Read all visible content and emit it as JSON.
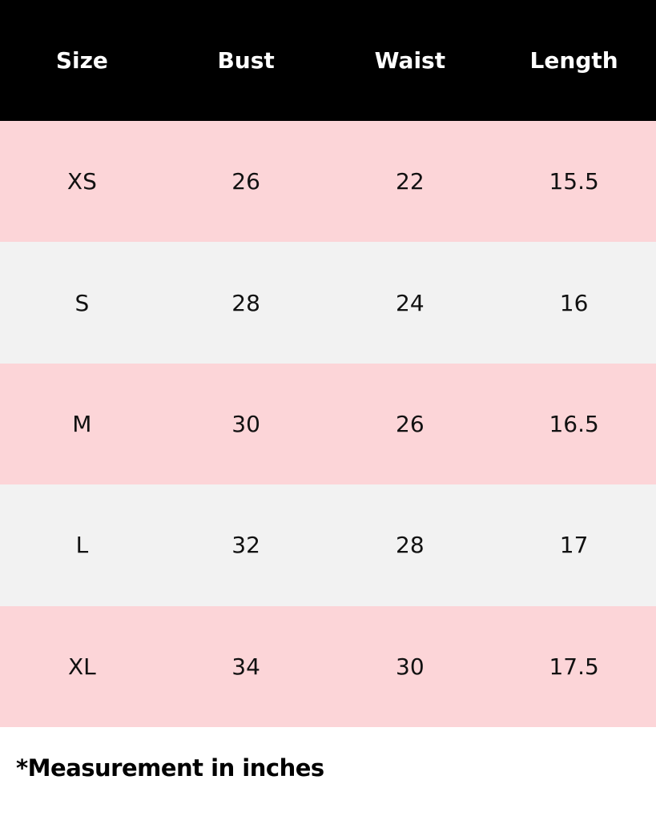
{
  "table": {
    "header": [
      "Size",
      "Bust",
      "Waist",
      "Length"
    ],
    "rows": [
      [
        "XS",
        "26",
        "22",
        "15.5"
      ],
      [
        "S",
        "28",
        "24",
        "16"
      ],
      [
        "M",
        "30",
        "26",
        "16.5"
      ],
      [
        "L",
        "32",
        "28",
        "17"
      ],
      [
        "XL",
        "34",
        "30",
        "17.5"
      ]
    ]
  },
  "footnote": "*Measurement in inches"
}
